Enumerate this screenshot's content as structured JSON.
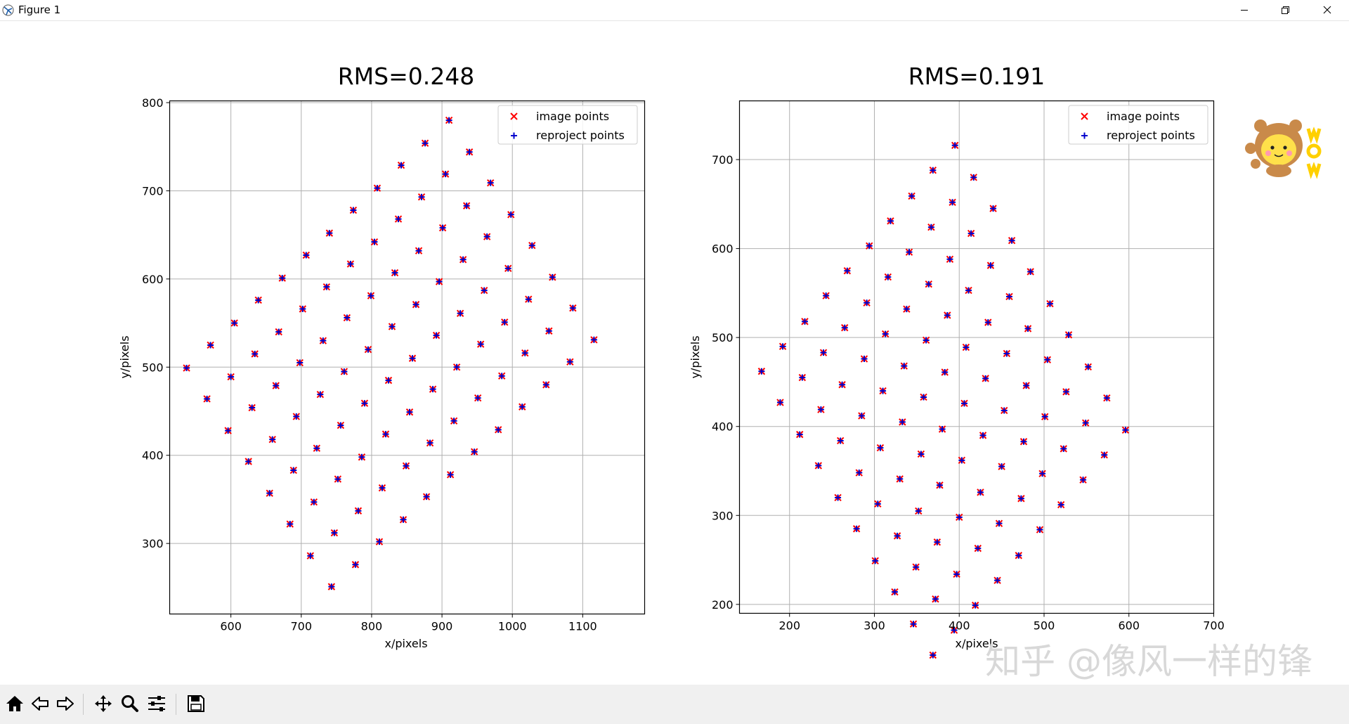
{
  "window": {
    "title": "Figure 1"
  },
  "toolbar": {
    "buttons": [
      {
        "icon": "home-icon"
      },
      {
        "icon": "back-arrow-icon"
      },
      {
        "icon": "forward-arrow-icon"
      },
      {
        "icon": "pan-icon"
      },
      {
        "icon": "zoom-icon"
      },
      {
        "icon": "subplots-config-icon"
      },
      {
        "icon": "save-icon"
      }
    ]
  },
  "colors": {
    "image_points": "#ff0000",
    "reproject_points": "#0000cc",
    "grid": "#b0b0b0"
  },
  "watermark": {
    "text": "知乎 @像风一样的锋"
  },
  "chart_data": [
    {
      "type": "scatter",
      "title": "RMS=0.248",
      "xlabel": "x/pixels",
      "ylabel": "y/pixels",
      "xlim": [
        513,
        1188
      ],
      "ylim": [
        220,
        802
      ],
      "xticks": [
        "600",
        "700",
        "800",
        "900",
        "1000",
        "1100"
      ],
      "yticks": [
        "300",
        "400",
        "500",
        "600",
        "700",
        "800"
      ],
      "grid": true,
      "legend_position": "top-right",
      "series": [
        {
          "name": "image points",
          "marker": "x",
          "color": "#ff0000"
        },
        {
          "name": "reproject points",
          "marker": "+",
          "color": "#0000cc"
        }
      ],
      "grid_start": [
        537,
        499
      ],
      "step_i": [
        33.9,
        25.5
      ],
      "step_j": [
        29.4,
        -35.5
      ],
      "ni": 12,
      "nj": 8,
      "points": []
    },
    {
      "type": "scatter",
      "title": "RMS=0.191",
      "xlabel": "x/pixels",
      "ylabel": "y/pixels",
      "xlim": [
        141,
        700
      ],
      "ylim": [
        190,
        766
      ],
      "xticks": [
        "200",
        "300",
        "400",
        "500",
        "600",
        "700"
      ],
      "yticks": [
        "200",
        "300",
        "400",
        "500",
        "600",
        "700"
      ],
      "grid": true,
      "legend_position": "top-right",
      "series": [
        {
          "name": "image points",
          "marker": "x",
          "color": "#ff0000"
        },
        {
          "name": "reproject points",
          "marker": "+",
          "color": "#0000cc"
        }
      ],
      "grid_start": [
        167,
        462
      ],
      "step_i": [
        25.3,
        28.2
      ],
      "step_j": [
        22.4,
        -35.5
      ],
      "ni": 10,
      "nj": 10,
      "points": []
    }
  ]
}
